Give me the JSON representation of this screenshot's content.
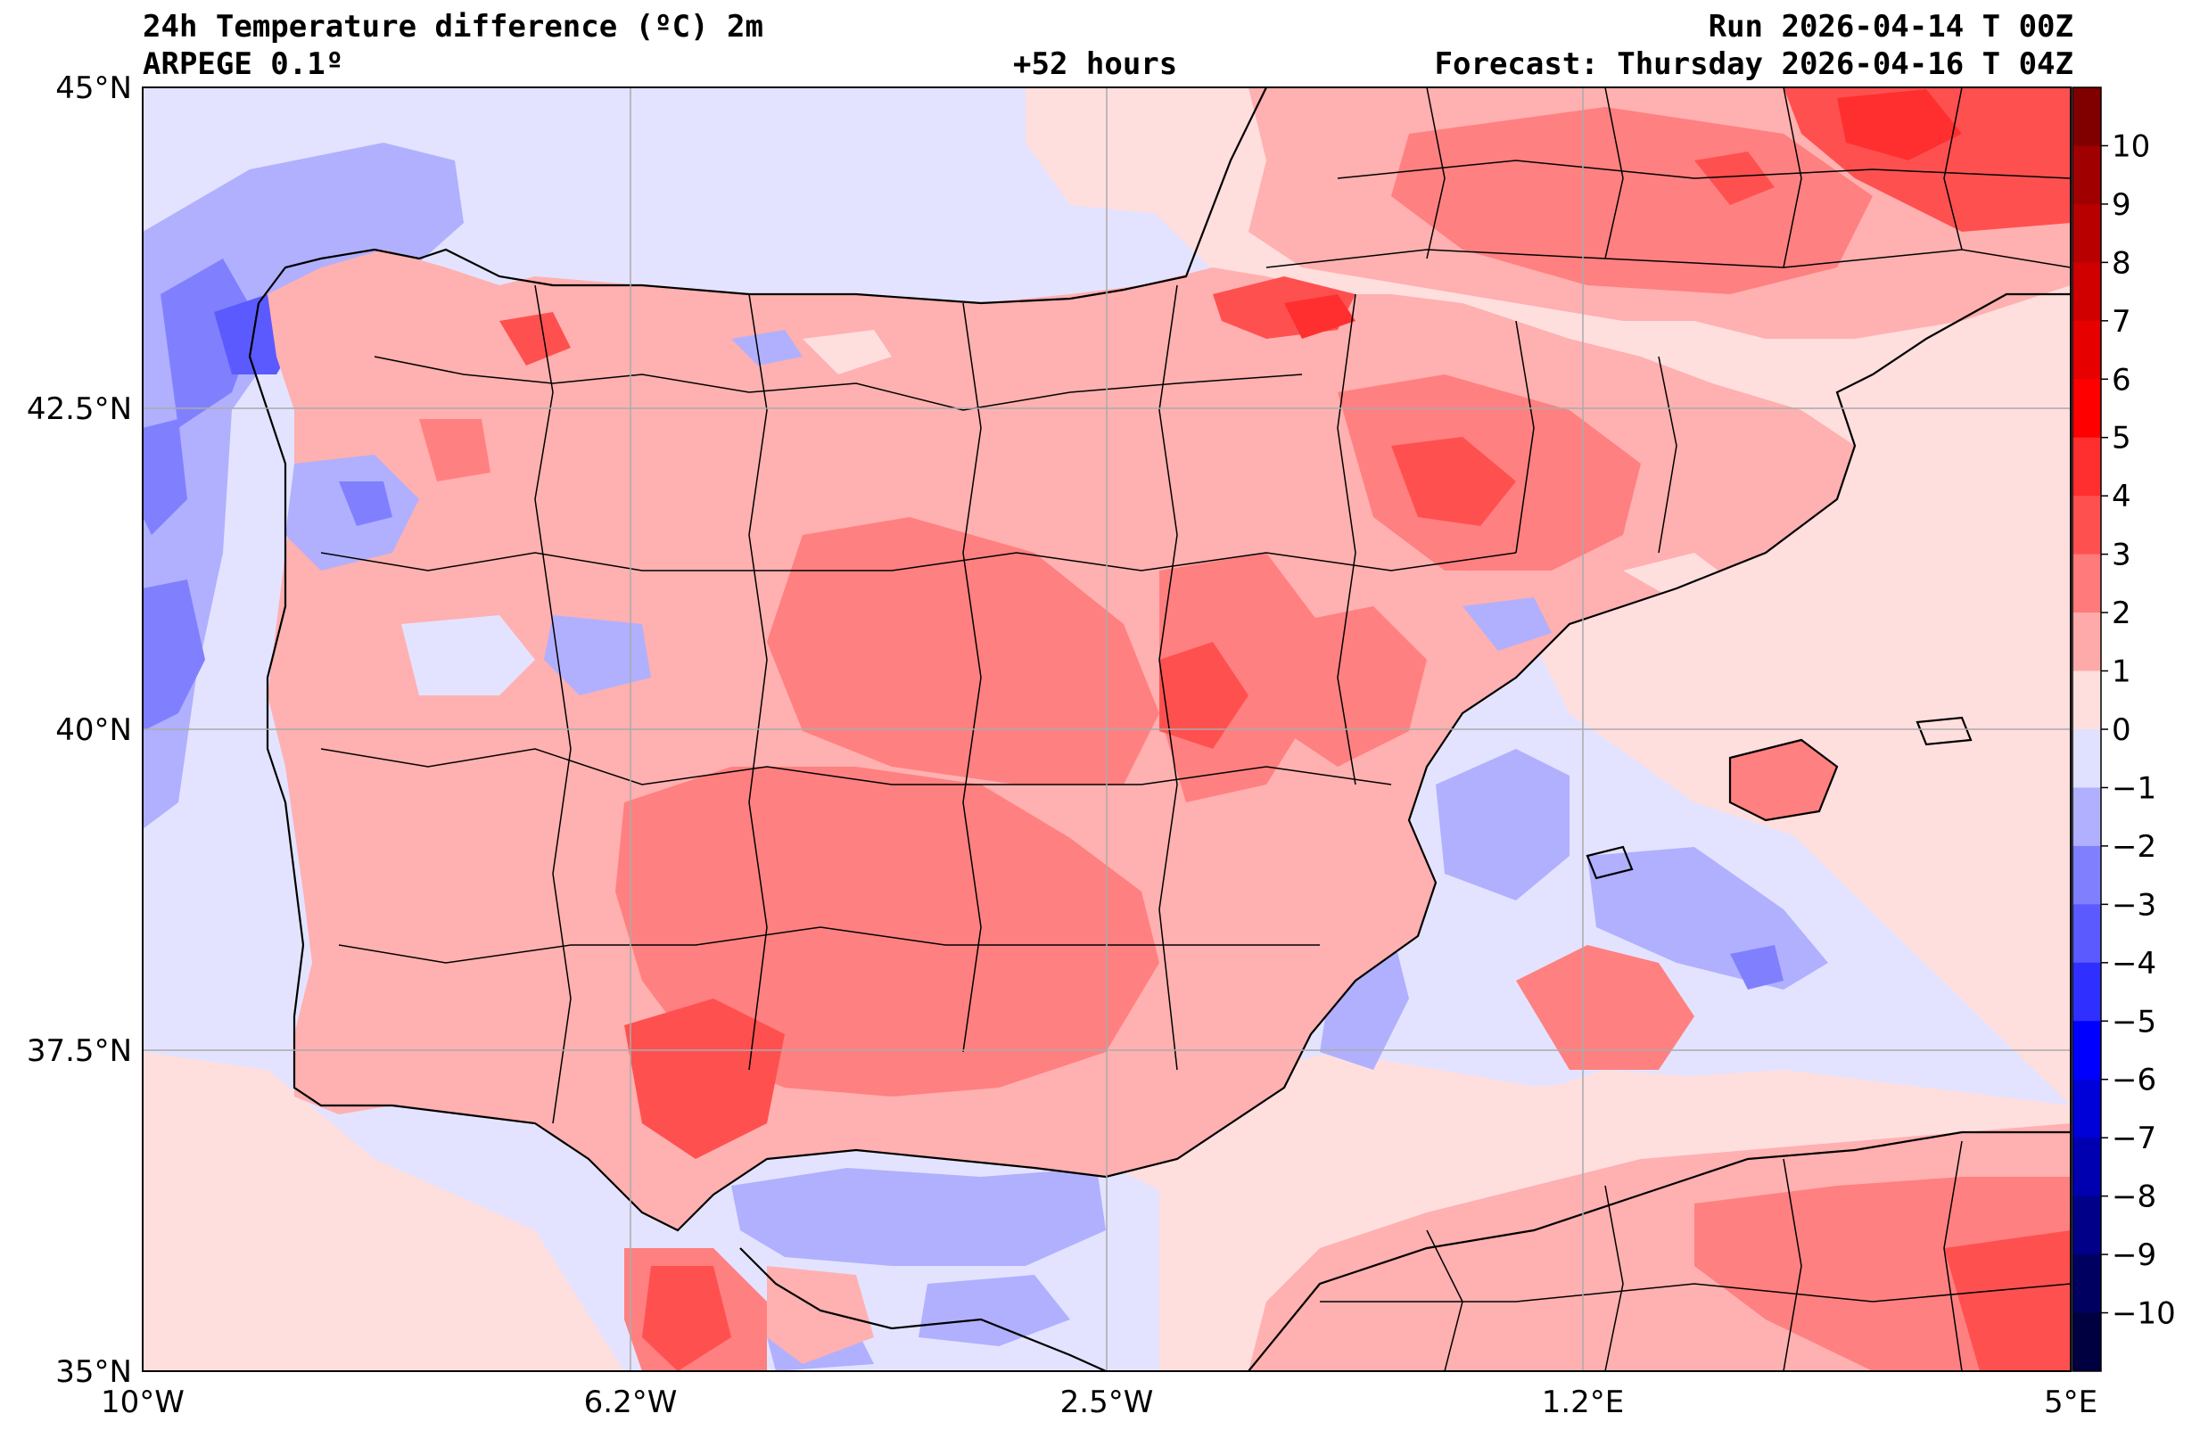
{
  "header": {
    "title_left": "24h Temperature difference (ºC) 2m",
    "model": "ARPEGE 0.1º",
    "lead": "+52 hours",
    "run": "Run 2026-04-14 T 00Z",
    "forecast": "Forecast: Thursday 2026-04-16 T 04Z"
  },
  "map": {
    "lat_labels": [
      "45°N",
      "42.5°N",
      "40°N",
      "37.5°N",
      "35°N"
    ],
    "lon_labels": [
      "10°W",
      "6.2°W",
      "2.5°W",
      "1.2°E",
      "5°E"
    ],
    "extent": {
      "lon_min": -10,
      "lon_max": 5,
      "lat_min": 35,
      "lat_max": 45
    },
    "grid": true
  },
  "colorbar": {
    "levels": [
      "10",
      "9",
      "8",
      "7",
      "6",
      "5",
      "4",
      "3",
      "2",
      "1",
      "0",
      "−1",
      "−2",
      "−3",
      "−4",
      "−5",
      "−6",
      "−7",
      "−8",
      "−9",
      "−10"
    ],
    "colors_top_to_bottom": [
      "#800000",
      "#a00000",
      "#b80000",
      "#d00000",
      "#e60000",
      "#ff0000",
      "#ff2f2f",
      "#ff5050",
      "#ff7a7a",
      "#ffaaaa",
      "#ffdede",
      "#e0e0ff",
      "#b0b0ff",
      "#8080ff",
      "#5a5aff",
      "#2f2fff",
      "#0000ff",
      "#0000d8",
      "#0000b0",
      "#000088",
      "#000060",
      "#000040"
    ]
  }
}
